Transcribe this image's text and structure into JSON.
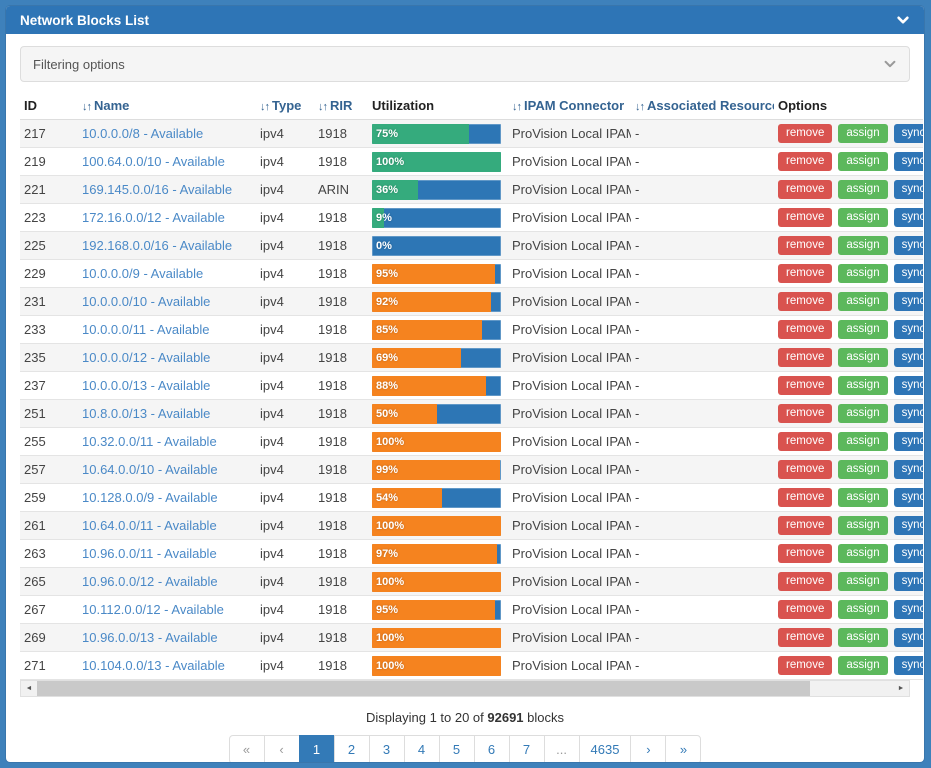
{
  "panel": {
    "title": "Network Blocks List"
  },
  "icons": {
    "collapse_chevron": "chevron-down",
    "filter_chevron": "chevron-down",
    "sort_glyph": "↓↑",
    "scroll_left_glyph": "◄",
    "scroll_right_glyph": "►"
  },
  "filtering": {
    "label": "Filtering options"
  },
  "colors": {
    "heading_blue": "#2e75b6",
    "bar_background": "#2d76b5",
    "green": "#35ab7d",
    "orange": "#f5831f",
    "remove_red": "#d9534f",
    "assign_green": "#5cb85c",
    "sync_blue": "#2e75b6",
    "active_page_blue": "#337ab7"
  },
  "table": {
    "columns": [
      {
        "label": "ID",
        "sortable": false
      },
      {
        "label": "Name",
        "sortable": true
      },
      {
        "label": "Type",
        "sortable": true
      },
      {
        "label": "RIR",
        "sortable": true
      },
      {
        "label": "Utilization",
        "sortable": false
      },
      {
        "label": "IPAM Connector",
        "sortable": true
      },
      {
        "label": "Associated Resources",
        "sortable": true
      },
      {
        "label": "Options",
        "sortable": false
      }
    ],
    "option_buttons": [
      {
        "label": "remove",
        "color": "#d9534f"
      },
      {
        "label": "assign",
        "color": "#5cb85c"
      },
      {
        "label": "sync",
        "color": "#2e75b6"
      }
    ],
    "rows": [
      {
        "id": "217",
        "name": "10.0.0.0/8 - Available",
        "type": "ipv4",
        "rir": "1918",
        "utilization_pct": 75,
        "utilization_label": "75%",
        "bar_color": "green",
        "ipam_connector": "ProVision Local IPAM",
        "associated_resources": "-"
      },
      {
        "id": "219",
        "name": "100.64.0.0/10 - Available",
        "type": "ipv4",
        "rir": "1918",
        "utilization_pct": 100,
        "utilization_label": "100%",
        "bar_color": "green",
        "ipam_connector": "ProVision Local IPAM",
        "associated_resources": "-"
      },
      {
        "id": "221",
        "name": "169.145.0.0/16 - Available",
        "type": "ipv4",
        "rir": "ARIN",
        "utilization_pct": 36,
        "utilization_label": "36%",
        "bar_color": "green",
        "ipam_connector": "ProVision Local IPAM",
        "associated_resources": "-"
      },
      {
        "id": "223",
        "name": "172.16.0.0/12 - Available",
        "type": "ipv4",
        "rir": "1918",
        "utilization_pct": 9,
        "utilization_label": "9%",
        "bar_color": "green",
        "ipam_connector": "ProVision Local IPAM",
        "associated_resources": "-"
      },
      {
        "id": "225",
        "name": "192.168.0.0/16 - Available",
        "type": "ipv4",
        "rir": "1918",
        "utilization_pct": 0,
        "utilization_label": "0%",
        "bar_color": "green",
        "ipam_connector": "ProVision Local IPAM",
        "associated_resources": "-"
      },
      {
        "id": "229",
        "name": "10.0.0.0/9 - Available",
        "type": "ipv4",
        "rir": "1918",
        "utilization_pct": 95,
        "utilization_label": "95%",
        "bar_color": "orange",
        "ipam_connector": "ProVision Local IPAM",
        "associated_resources": "-"
      },
      {
        "id": "231",
        "name": "10.0.0.0/10 - Available",
        "type": "ipv4",
        "rir": "1918",
        "utilization_pct": 92,
        "utilization_label": "92%",
        "bar_color": "orange",
        "ipam_connector": "ProVision Local IPAM",
        "associated_resources": "-"
      },
      {
        "id": "233",
        "name": "10.0.0.0/11 - Available",
        "type": "ipv4",
        "rir": "1918",
        "utilization_pct": 85,
        "utilization_label": "85%",
        "bar_color": "orange",
        "ipam_connector": "ProVision Local IPAM",
        "associated_resources": "-"
      },
      {
        "id": "235",
        "name": "10.0.0.0/12 - Available",
        "type": "ipv4",
        "rir": "1918",
        "utilization_pct": 69,
        "utilization_label": "69%",
        "bar_color": "orange",
        "ipam_connector": "ProVision Local IPAM",
        "associated_resources": "-"
      },
      {
        "id": "237",
        "name": "10.0.0.0/13 - Available",
        "type": "ipv4",
        "rir": "1918",
        "utilization_pct": 88,
        "utilization_label": "88%",
        "bar_color": "orange",
        "ipam_connector": "ProVision Local IPAM",
        "associated_resources": "-"
      },
      {
        "id": "251",
        "name": "10.8.0.0/13 - Available",
        "type": "ipv4",
        "rir": "1918",
        "utilization_pct": 50,
        "utilization_label": "50%",
        "bar_color": "orange",
        "ipam_connector": "ProVision Local IPAM",
        "associated_resources": "-"
      },
      {
        "id": "255",
        "name": "10.32.0.0/11 - Available",
        "type": "ipv4",
        "rir": "1918",
        "utilization_pct": 100,
        "utilization_label": "100%",
        "bar_color": "orange",
        "ipam_connector": "ProVision Local IPAM",
        "associated_resources": "-"
      },
      {
        "id": "257",
        "name": "10.64.0.0/10 - Available",
        "type": "ipv4",
        "rir": "1918",
        "utilization_pct": 99,
        "utilization_label": "99%",
        "bar_color": "orange",
        "ipam_connector": "ProVision Local IPAM",
        "associated_resources": "-"
      },
      {
        "id": "259",
        "name": "10.128.0.0/9 - Available",
        "type": "ipv4",
        "rir": "1918",
        "utilization_pct": 54,
        "utilization_label": "54%",
        "bar_color": "orange",
        "ipam_connector": "ProVision Local IPAM",
        "associated_resources": "-"
      },
      {
        "id": "261",
        "name": "10.64.0.0/11 - Available",
        "type": "ipv4",
        "rir": "1918",
        "utilization_pct": 100,
        "utilization_label": "100%",
        "bar_color": "orange",
        "ipam_connector": "ProVision Local IPAM",
        "associated_resources": "-"
      },
      {
        "id": "263",
        "name": "10.96.0.0/11 - Available",
        "type": "ipv4",
        "rir": "1918",
        "utilization_pct": 97,
        "utilization_label": "97%",
        "bar_color": "orange",
        "ipam_connector": "ProVision Local IPAM",
        "associated_resources": "-"
      },
      {
        "id": "265",
        "name": "10.96.0.0/12 - Available",
        "type": "ipv4",
        "rir": "1918",
        "utilization_pct": 100,
        "utilization_label": "100%",
        "bar_color": "orange",
        "ipam_connector": "ProVision Local IPAM",
        "associated_resources": "-"
      },
      {
        "id": "267",
        "name": "10.112.0.0/12 - Available",
        "type": "ipv4",
        "rir": "1918",
        "utilization_pct": 95,
        "utilization_label": "95%",
        "bar_color": "orange",
        "ipam_connector": "ProVision Local IPAM",
        "associated_resources": "-"
      },
      {
        "id": "269",
        "name": "10.96.0.0/13 - Available",
        "type": "ipv4",
        "rir": "1918",
        "utilization_pct": 100,
        "utilization_label": "100%",
        "bar_color": "orange",
        "ipam_connector": "ProVision Local IPAM",
        "associated_resources": "-"
      },
      {
        "id": "271",
        "name": "10.104.0.0/13 - Available",
        "type": "ipv4",
        "rir": "1918",
        "utilization_pct": 100,
        "utilization_label": "100%",
        "bar_color": "orange",
        "ipam_connector": "ProVision Local IPAM",
        "associated_resources": "-"
      }
    ]
  },
  "footer": {
    "summary_prefix": "Displaying 1 to 20 of ",
    "summary_count": "92691",
    "summary_suffix": " blocks"
  },
  "pagination": {
    "items": [
      {
        "label": "«",
        "type": "disabled"
      },
      {
        "label": "‹",
        "type": "disabled"
      },
      {
        "label": "1",
        "type": "active"
      },
      {
        "label": "2",
        "type": "page"
      },
      {
        "label": "3",
        "type": "page"
      },
      {
        "label": "4",
        "type": "page"
      },
      {
        "label": "5",
        "type": "page"
      },
      {
        "label": "6",
        "type": "page"
      },
      {
        "label": "7",
        "type": "page"
      },
      {
        "label": "...",
        "type": "ellipsis"
      },
      {
        "label": "4635",
        "type": "page"
      },
      {
        "label": "›",
        "type": "nav"
      },
      {
        "label": "»",
        "type": "nav"
      }
    ]
  }
}
